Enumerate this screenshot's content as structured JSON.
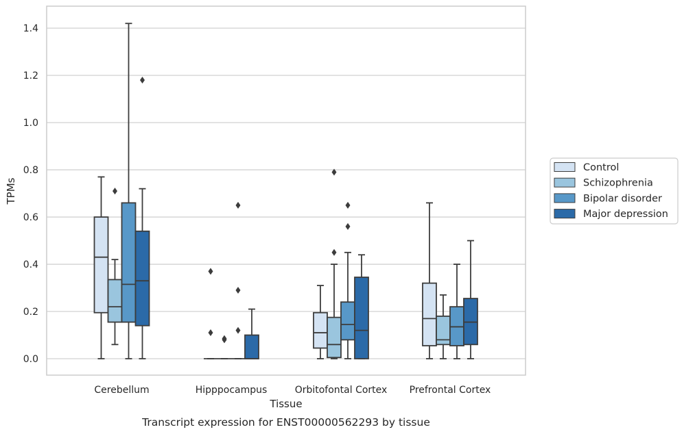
{
  "chart_data": {
    "type": "box",
    "title": "",
    "xlabel": "Tissue",
    "ylabel": "TPMs",
    "caption": "Transcript expression for ENST00000562293 by tissue",
    "ylim": [
      -0.07,
      1.49
    ],
    "yticks": [
      "0.0",
      "0.2",
      "0.4",
      "0.6",
      "0.8",
      "1.0",
      "1.2",
      "1.4"
    ],
    "grid": "horizontal",
    "legend_position": "right",
    "categories": [
      "Cerebellum",
      "Hipppocampus",
      "Orbitofontal Cortex",
      "Prefrontal Cortex"
    ],
    "series": [
      {
        "name": "Control",
        "color": "#d4e3f3",
        "boxes": [
          {
            "whislo": 0.0,
            "q1": 0.195,
            "med": 0.43,
            "q3": 0.6,
            "whishi": 0.77,
            "fliers": []
          },
          {
            "whislo": 0.0,
            "q1": 0.0,
            "med": 0.0,
            "q3": 0.0,
            "whishi": 0.0,
            "fliers": [
              0.11,
              0.37
            ]
          },
          {
            "whislo": 0.0,
            "q1": 0.045,
            "med": 0.11,
            "q3": 0.195,
            "whishi": 0.31,
            "fliers": []
          },
          {
            "whislo": 0.0,
            "q1": 0.055,
            "med": 0.17,
            "q3": 0.32,
            "whishi": 0.66,
            "fliers": []
          }
        ]
      },
      {
        "name": "Schizophrenia",
        "color": "#9ac5de",
        "boxes": [
          {
            "whislo": 0.06,
            "q1": 0.155,
            "med": 0.22,
            "q3": 0.335,
            "whishi": 0.42,
            "fliers": [
              0.71
            ]
          },
          {
            "whislo": 0.0,
            "q1": 0.0,
            "med": 0.0,
            "q3": 0.0,
            "whishi": 0.0,
            "fliers": [
              0.08,
              0.085
            ]
          },
          {
            "whislo": 0.0,
            "q1": 0.005,
            "med": 0.06,
            "q3": 0.175,
            "whishi": 0.4,
            "fliers": [
              0.45,
              0.79
            ]
          },
          {
            "whislo": 0.0,
            "q1": 0.06,
            "med": 0.08,
            "q3": 0.18,
            "whishi": 0.27,
            "fliers": []
          }
        ]
      },
      {
        "name": "Bipolar disorder",
        "color": "#5898c8",
        "boxes": [
          {
            "whislo": 0.0,
            "q1": 0.155,
            "med": 0.315,
            "q3": 0.66,
            "whishi": 1.42,
            "fliers": []
          },
          {
            "whislo": 0.0,
            "q1": 0.0,
            "med": 0.0,
            "q3": 0.0,
            "whishi": 0.0,
            "fliers": [
              0.12,
              0.29,
              0.65
            ]
          },
          {
            "whislo": 0.0,
            "q1": 0.08,
            "med": 0.145,
            "q3": 0.24,
            "whishi": 0.45,
            "fliers": [
              0.56,
              0.65
            ]
          },
          {
            "whislo": 0.0,
            "q1": 0.055,
            "med": 0.135,
            "q3": 0.22,
            "whishi": 0.4,
            "fliers": []
          }
        ]
      },
      {
        "name": "Major depression",
        "color": "#2b6aa8",
        "boxes": [
          {
            "whislo": 0.0,
            "q1": 0.14,
            "med": 0.33,
            "q3": 0.54,
            "whishi": 0.72,
            "fliers": [
              1.18
            ]
          },
          {
            "whislo": 0.0,
            "q1": 0.0,
            "med": 0.0,
            "q3": 0.1,
            "whishi": 0.21,
            "fliers": []
          },
          {
            "whislo": 0.0,
            "q1": 0.0,
            "med": 0.12,
            "q3": 0.345,
            "whishi": 0.44,
            "fliers": []
          },
          {
            "whislo": 0.0,
            "q1": 0.06,
            "med": 0.155,
            "q3": 0.255,
            "whishi": 0.5,
            "fliers": []
          }
        ]
      }
    ]
  }
}
